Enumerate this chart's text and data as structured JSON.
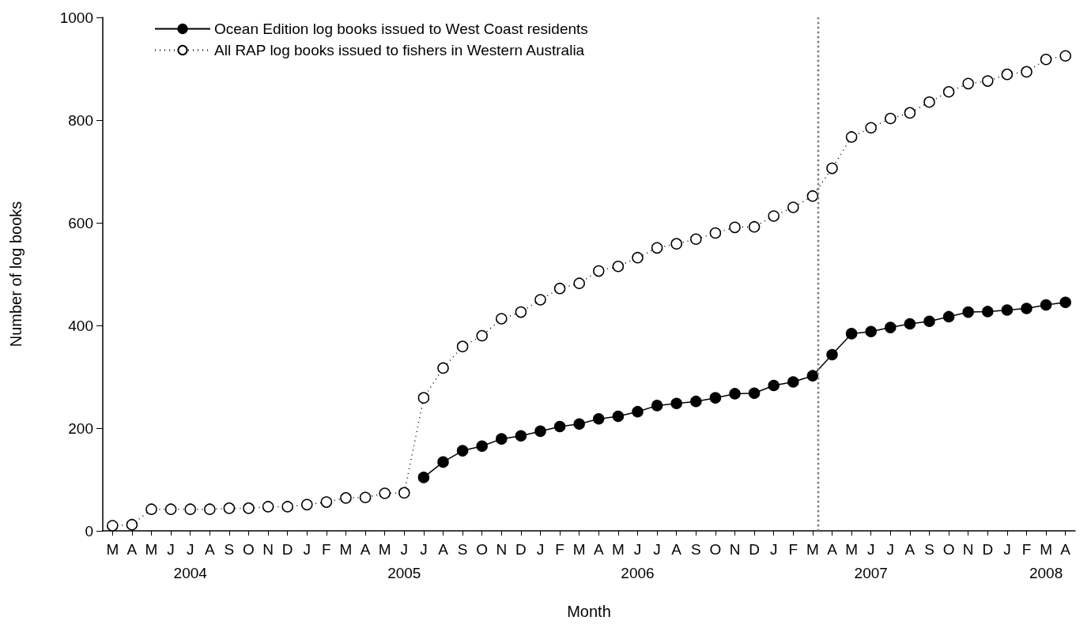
{
  "chart_data": {
    "type": "line",
    "xlabel": "Month",
    "ylabel": "Number of log books",
    "categories": [
      "M",
      "A",
      "M",
      "J",
      "J\n2004",
      "A",
      "S",
      "O",
      "N",
      "D",
      "J",
      "F",
      "M",
      "A",
      "M",
      "J\n2005",
      "J",
      "A",
      "S",
      "O",
      "N",
      "D",
      "J",
      "F",
      "M",
      "A",
      "M",
      "J\n2006",
      "J",
      "A",
      "S",
      "O",
      "N",
      "D",
      "J",
      "F",
      "M",
      "A",
      "M",
      "J\n2007",
      "J",
      "A",
      "S",
      "O",
      "N",
      "D",
      "J",
      "F",
      "M\n2008",
      "A"
    ],
    "series": [
      {
        "name": "Ocean Edition log books issued to West Coast residents",
        "color": "#000000",
        "line_style": "solid",
        "values": [
          null,
          null,
          null,
          null,
          null,
          null,
          null,
          null,
          null,
          null,
          null,
          null,
          null,
          null,
          null,
          null,
          104,
          134,
          156,
          165,
          179,
          185,
          194,
          203,
          208,
          218,
          223,
          232,
          244,
          248,
          252,
          259,
          267,
          268,
          283,
          290,
          302,
          343,
          384,
          388,
          396,
          403,
          408,
          417,
          426,
          427,
          430,
          433,
          440,
          445
        ]
      },
      {
        "name": "All RAP log books issued to fishers in Western Australia",
        "color": "#000000",
        "line_style": "dotted",
        "values": [
          10,
          12,
          42,
          42,
          42,
          42,
          44,
          44,
          47,
          47,
          51,
          56,
          64,
          65,
          73,
          74,
          259,
          317,
          359,
          380,
          413,
          426,
          450,
          472,
          482,
          506,
          515,
          532,
          551,
          559,
          568,
          580,
          591,
          592,
          613,
          630,
          652,
          706,
          767,
          785,
          803,
          814,
          835,
          855,
          871,
          876,
          889,
          894,
          918,
          925
        ]
      }
    ],
    "marker": "circle",
    "ylim": [
      0,
      1000
    ],
    "yticks": [
      0,
      200,
      400,
      600,
      800,
      1000
    ],
    "legend": "top left",
    "grid": false
  }
}
